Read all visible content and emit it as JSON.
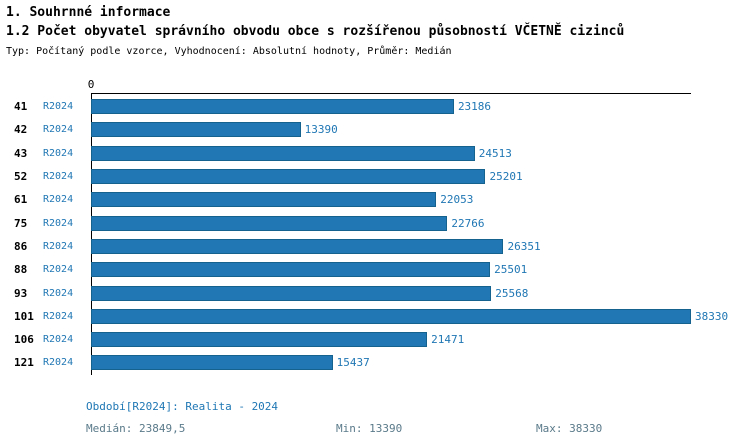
{
  "title": "1. Souhrnné informace",
  "subtitle": "1.2 Počet obyvatel správního obvodu obce s rozšířenou působností VČETNĚ cizinců",
  "meta": "Typ: Počítaný podle vzorce, Vyhodnocení: Absolutní hodnoty, Průměr: Medián",
  "chart_data": {
    "type": "bar",
    "orientation": "horizontal",
    "title": "1.2 Počet obyvatel správního obvodu obce s rozšířenou působností VČETNĚ cizinců",
    "axis_origin_label": "0",
    "series_label": "R2024",
    "categories": [
      "41",
      "42",
      "43",
      "52",
      "61",
      "75",
      "86",
      "88",
      "93",
      "101",
      "106",
      "121"
    ],
    "values": [
      23186,
      13390,
      24513,
      25201,
      22053,
      22766,
      26351,
      25501,
      25568,
      38330,
      21471,
      15437
    ],
    "value_labels": [
      "23186",
      "13390",
      "24513",
      "25201",
      "22053",
      "22766",
      "26351",
      "25501",
      "25568",
      "38330",
      "21471",
      "15437"
    ],
    "xlim": [
      0,
      38330
    ],
    "bar_color": "#2077b4",
    "grid": false,
    "legend_position": "none"
  },
  "footer": {
    "period": "Období[R2024]: Realita - 2024",
    "median": "Medián: 23849,5",
    "min": "Min: 13390",
    "max": "Max: 38330"
  }
}
